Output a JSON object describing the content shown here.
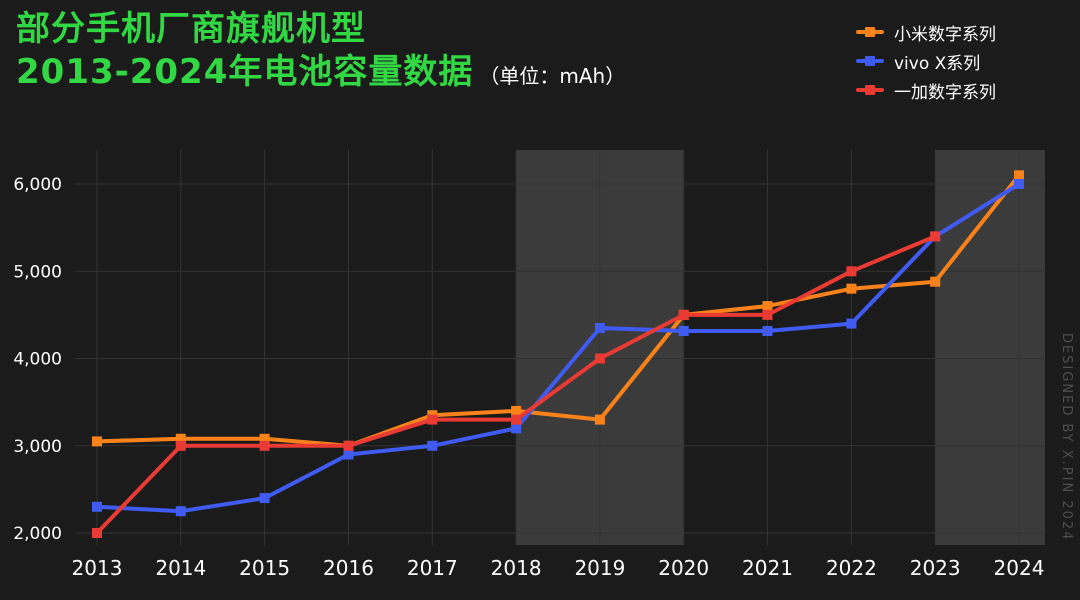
{
  "header": {
    "title_line1": "部分手机厂商旗舰机型",
    "title_line2": "2013-2024年电池容量数据",
    "unit": "（单位：mAh）"
  },
  "legend": [
    {
      "label": "小米数字系列",
      "color": "#F9821A"
    },
    {
      "label": "vivo X系列",
      "color": "#3F5BF2"
    },
    {
      "label": "一加数字系列",
      "color": "#E93A34"
    }
  ],
  "watermark": "DESIGNED BY X.PIN 2024",
  "colors": {
    "background": "#1B1B1B",
    "grid": "#333333",
    "band": "#3B3B3B",
    "axis_text": "#FFFFFF",
    "title_green": "#32D843",
    "watermark_gray": "#4E4E4E"
  },
  "chart_data": {
    "type": "line",
    "title": "部分手机厂商旗舰机型 2013-2024年电池容量数据",
    "unit": "mAh",
    "xlabel": "",
    "ylabel": "",
    "grid": true,
    "legend_position": "top-right",
    "categories": [
      "2013",
      "2014",
      "2015",
      "2016",
      "2017",
      "2018",
      "2019",
      "2020",
      "2021",
      "2022",
      "2023",
      "2024"
    ],
    "ylim": [
      2000,
      6400
    ],
    "yticks": [
      {
        "value": 2000,
        "label": "2,000"
      },
      {
        "value": 3000,
        "label": "3,000"
      },
      {
        "value": 4000,
        "label": "4,000"
      },
      {
        "value": 5000,
        "label": "5,000"
      },
      {
        "value": 6000,
        "label": "6,000"
      }
    ],
    "series": [
      {
        "name": "小米数字系列",
        "color": "#F9821A",
        "values": [
          3050,
          3080,
          3080,
          3000,
          3350,
          3400,
          3300,
          4500,
          4600,
          4800,
          4880,
          6100
        ]
      },
      {
        "name": "vivo X系列",
        "color": "#3F5BF2",
        "values": [
          2300,
          2250,
          2400,
          2900,
          3000,
          3200,
          4350,
          4315,
          4315,
          4400,
          5400,
          6000
        ]
      },
      {
        "name": "一加数字系列",
        "color": "#E93A34",
        "values": [
          2000,
          3000,
          3000,
          3000,
          3300,
          3300,
          4000,
          4500,
          4500,
          5000,
          5400,
          null
        ]
      }
    ],
    "highlight_bands": [
      {
        "from_index": 5,
        "to_index": 7
      },
      {
        "from_index": 10,
        "to_index": 11.31
      }
    ]
  }
}
